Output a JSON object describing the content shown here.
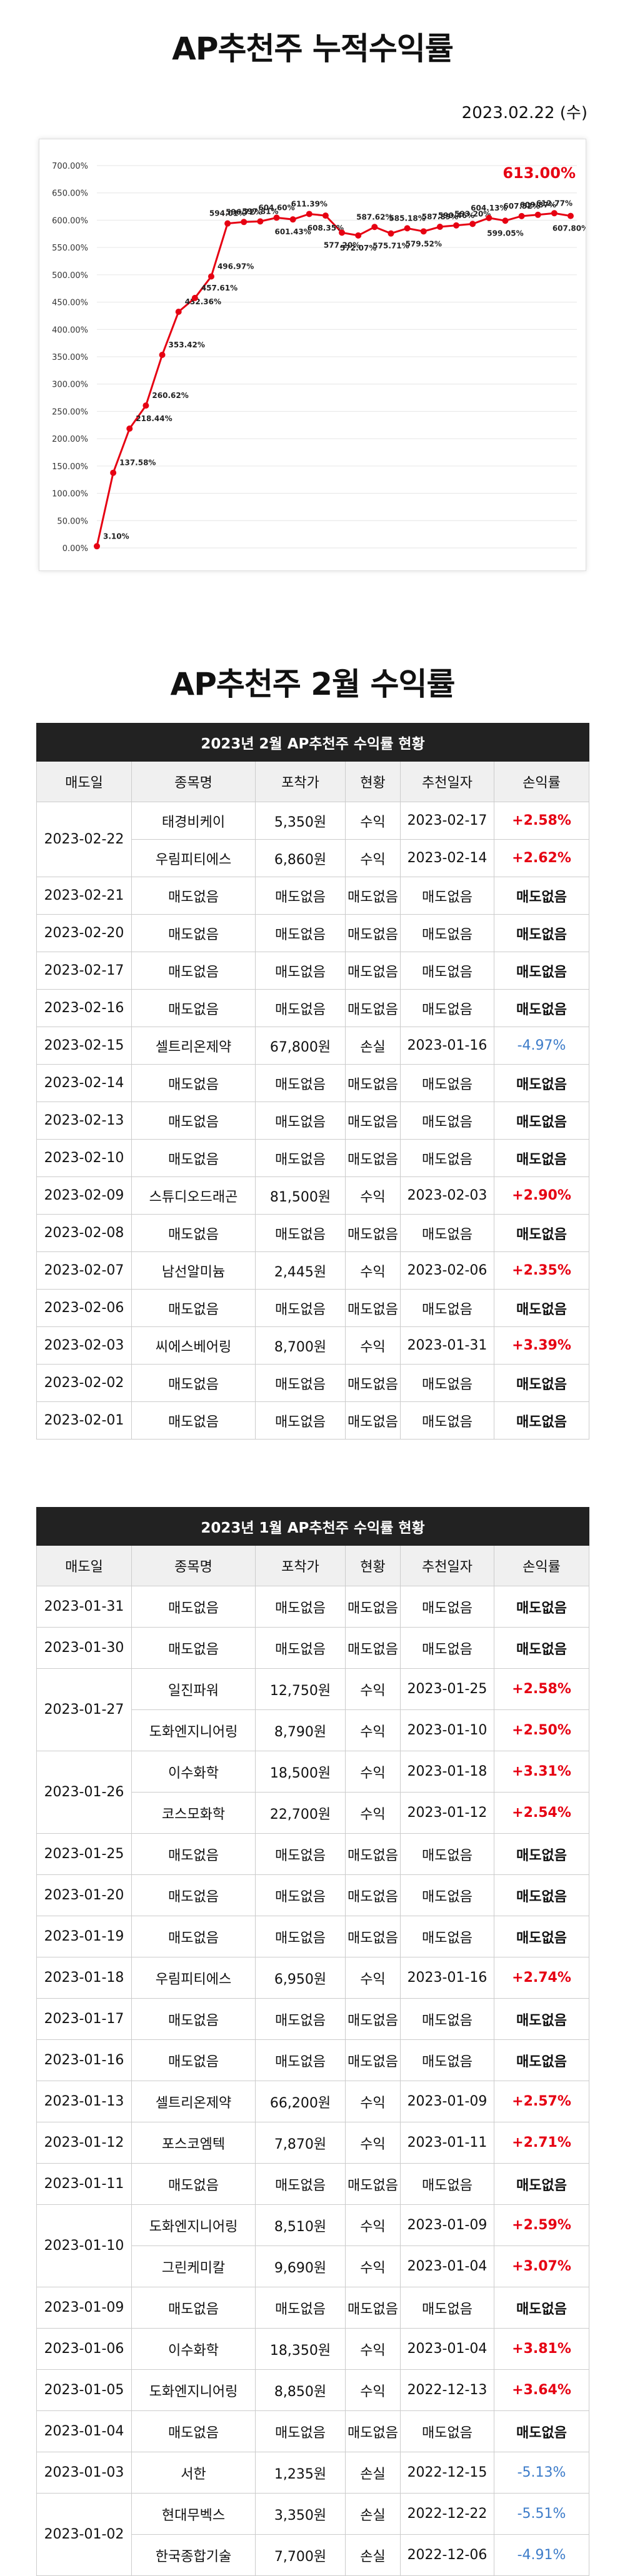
{
  "header": {
    "title": "AP추천주 누적수익률",
    "date": "2023.02.22 (수)"
  },
  "chart_data": {
    "type": "line",
    "categories": [
      null,
      null,
      null,
      null,
      null,
      null,
      null,
      null,
      null,
      null,
      null,
      null,
      null,
      null,
      null,
      null,
      null,
      null,
      null,
      null,
      null,
      null,
      null,
      null,
      null,
      null,
      null,
      null,
      null,
      null
    ],
    "series": [
      {
        "name": null,
        "color": "#e60012",
        "values": [
          3.1,
          137.58,
          218.44,
          260.62,
          353.42,
          432.36,
          457.61,
          496.97,
          594.01,
          596.72,
          597.81,
          604.6,
          601.43,
          611.39,
          608.35,
          577.2,
          572.07,
          587.62,
          575.71,
          585.18,
          579.52,
          587.89,
          590.46,
          593.2,
          604.13,
          599.05,
          607.52,
          609.87,
          612.77,
          607.8
        ],
        "value_labels": [
          "3.10%",
          "137.58%",
          "218.44%",
          "260.62%",
          "353.42%",
          "432.36%",
          "457.61%",
          "496.97%",
          "594.01%",
          "596.72%",
          "597.81%",
          "604.60%",
          "601.43%",
          "611.39%",
          "608.35%",
          "577.20%",
          "572.07%",
          "587.62%",
          "575.71%",
          "585.18%",
          "579.52%",
          "587.89%",
          "590.46%",
          "593.20%",
          "604.13%",
          "599.05%",
          "607.52%",
          "609.87%",
          "612.77%",
          "607.80%"
        ]
      }
    ],
    "annotation": "613.00%",
    "ylim": [
      0,
      700
    ],
    "yticks": [
      {
        "value": 0,
        "label": "0.00%"
      },
      {
        "value": 50,
        "label": "50.00%"
      },
      {
        "value": 100,
        "label": "100.00%"
      },
      {
        "value": 150,
        "label": "150.00%"
      },
      {
        "value": 200,
        "label": "200.00%"
      },
      {
        "value": 250,
        "label": "250.00%"
      },
      {
        "value": 300,
        "label": "300.00%"
      },
      {
        "value": 350,
        "label": "350.00%"
      },
      {
        "value": 400,
        "label": "400.00%"
      },
      {
        "value": 450,
        "label": "450.00%"
      },
      {
        "value": 500,
        "label": "500.00%"
      },
      {
        "value": 550,
        "label": "550.00%"
      },
      {
        "value": 600,
        "label": "600.00%"
      },
      {
        "value": 650,
        "label": "650.00%"
      },
      {
        "value": 700,
        "label": "700.00%"
      }
    ],
    "grid": true
  },
  "section_title": "AP추천주 2월 수익률",
  "tables": [
    {
      "caption": "2023년 2월 AP추천주 수익률 현황",
      "headers": [
        "매도일",
        "종목명",
        "포착가",
        "현황",
        "추천일자",
        "손익률"
      ],
      "groups": [
        {
          "date": "2023-02-22",
          "items": [
            [
              "태경비케이",
              "5,350원",
              "수익",
              "2023-02-17",
              "+2.58%"
            ],
            [
              "우림피티에스",
              "6,860원",
              "수익",
              "2023-02-14",
              "+2.62%"
            ]
          ]
        },
        {
          "date": "2023-02-21",
          "items": [
            [
              "매도없음",
              "매도없음",
              "매도없음",
              "매도없음",
              "매도없음"
            ]
          ]
        },
        {
          "date": "2023-02-20",
          "items": [
            [
              "매도없음",
              "매도없음",
              "매도없음",
              "매도없음",
              "매도없음"
            ]
          ]
        },
        {
          "date": "2023-02-17",
          "items": [
            [
              "매도없음",
              "매도없음",
              "매도없음",
              "매도없음",
              "매도없음"
            ]
          ]
        },
        {
          "date": "2023-02-16",
          "items": [
            [
              "매도없음",
              "매도없음",
              "매도없음",
              "매도없음",
              "매도없음"
            ]
          ]
        },
        {
          "date": "2023-02-15",
          "items": [
            [
              "셀트리온제약",
              "67,800원",
              "손실",
              "2023-01-16",
              "-4.97%"
            ]
          ]
        },
        {
          "date": "2023-02-14",
          "items": [
            [
              "매도없음",
              "매도없음",
              "매도없음",
              "매도없음",
              "매도없음"
            ]
          ]
        },
        {
          "date": "2023-02-13",
          "items": [
            [
              "매도없음",
              "매도없음",
              "매도없음",
              "매도없음",
              "매도없음"
            ]
          ]
        },
        {
          "date": "2023-02-10",
          "items": [
            [
              "매도없음",
              "매도없음",
              "매도없음",
              "매도없음",
              "매도없음"
            ]
          ]
        },
        {
          "date": "2023-02-09",
          "items": [
            [
              "스튜디오드래곤",
              "81,500원",
              "수익",
              "2023-02-03",
              "+2.90%"
            ]
          ]
        },
        {
          "date": "2023-02-08",
          "items": [
            [
              "매도없음",
              "매도없음",
              "매도없음",
              "매도없음",
              "매도없음"
            ]
          ]
        },
        {
          "date": "2023-02-07",
          "items": [
            [
              "남선알미늄",
              "2,445원",
              "수익",
              "2023-02-06",
              "+2.35%"
            ]
          ]
        },
        {
          "date": "2023-02-06",
          "items": [
            [
              "매도없음",
              "매도없음",
              "매도없음",
              "매도없음",
              "매도없음"
            ]
          ]
        },
        {
          "date": "2023-02-03",
          "items": [
            [
              "씨에스베어링",
              "8,700원",
              "수익",
              "2023-01-31",
              "+3.39%"
            ]
          ]
        },
        {
          "date": "2023-02-02",
          "items": [
            [
              "매도없음",
              "매도없음",
              "매도없음",
              "매도없음",
              "매도없음"
            ]
          ]
        },
        {
          "date": "2023-02-01",
          "items": [
            [
              "매도없음",
              "매도없음",
              "매도없음",
              "매도없음",
              "매도없음"
            ]
          ]
        }
      ]
    },
    {
      "caption": "2023년 1월 AP추천주 수익률 현황",
      "headers": [
        "매도일",
        "종목명",
        "포착가",
        "현황",
        "추천일자",
        "손익률"
      ],
      "groups": [
        {
          "date": "2023-01-31",
          "items": [
            [
              "매도없음",
              "매도없음",
              "매도없음",
              "매도없음",
              "매도없음"
            ]
          ]
        },
        {
          "date": "2023-01-30",
          "items": [
            [
              "매도없음",
              "매도없음",
              "매도없음",
              "매도없음",
              "매도없음"
            ]
          ]
        },
        {
          "date": "2023-01-27",
          "items": [
            [
              "일진파워",
              "12,750원",
              "수익",
              "2023-01-25",
              "+2.58%"
            ],
            [
              "도화엔지니어링",
              "8,790원",
              "수익",
              "2023-01-10",
              "+2.50%"
            ]
          ]
        },
        {
          "date": "2023-01-26",
          "items": [
            [
              "이수화학",
              "18,500원",
              "수익",
              "2023-01-18",
              "+3.31%"
            ],
            [
              "코스모화학",
              "22,700원",
              "수익",
              "2023-01-12",
              "+2.54%"
            ]
          ]
        },
        {
          "date": "2023-01-25",
          "items": [
            [
              "매도없음",
              "매도없음",
              "매도없음",
              "매도없음",
              "매도없음"
            ]
          ]
        },
        {
          "date": "2023-01-20",
          "items": [
            [
              "매도없음",
              "매도없음",
              "매도없음",
              "매도없음",
              "매도없음"
            ]
          ]
        },
        {
          "date": "2023-01-19",
          "items": [
            [
              "매도없음",
              "매도없음",
              "매도없음",
              "매도없음",
              "매도없음"
            ]
          ]
        },
        {
          "date": "2023-01-18",
          "items": [
            [
              "우림피티에스",
              "6,950원",
              "수익",
              "2023-01-16",
              "+2.74%"
            ]
          ]
        },
        {
          "date": "2023-01-17",
          "items": [
            [
              "매도없음",
              "매도없음",
              "매도없음",
              "매도없음",
              "매도없음"
            ]
          ]
        },
        {
          "date": "2023-01-16",
          "items": [
            [
              "매도없음",
              "매도없음",
              "매도없음",
              "매도없음",
              "매도없음"
            ]
          ]
        },
        {
          "date": "2023-01-13",
          "items": [
            [
              "셀트리온제약",
              "66,200원",
              "수익",
              "2023-01-09",
              "+2.57%"
            ]
          ]
        },
        {
          "date": "2023-01-12",
          "items": [
            [
              "포스코엠텍",
              "7,870원",
              "수익",
              "2023-01-11",
              "+2.71%"
            ]
          ]
        },
        {
          "date": "2023-01-11",
          "items": [
            [
              "매도없음",
              "매도없음",
              "매도없음",
              "매도없음",
              "매도없음"
            ]
          ]
        },
        {
          "date": "2023-01-10",
          "items": [
            [
              "도화엔지니어링",
              "8,510원",
              "수익",
              "2023-01-09",
              "+2.59%"
            ],
            [
              "그린케미칼",
              "9,690원",
              "수익",
              "2023-01-04",
              "+3.07%"
            ]
          ]
        },
        {
          "date": "2023-01-09",
          "items": [
            [
              "매도없음",
              "매도없음",
              "매도없음",
              "매도없음",
              "매도없음"
            ]
          ]
        },
        {
          "date": "2023-01-06",
          "items": [
            [
              "이수화학",
              "18,350원",
              "수익",
              "2023-01-04",
              "+3.81%"
            ]
          ]
        },
        {
          "date": "2023-01-05",
          "items": [
            [
              "도화엔지니어링",
              "8,850원",
              "수익",
              "2022-12-13",
              "+3.64%"
            ]
          ]
        },
        {
          "date": "2023-01-04",
          "items": [
            [
              "매도없음",
              "매도없음",
              "매도없음",
              "매도없음",
              "매도없음"
            ]
          ]
        },
        {
          "date": "2023-01-03",
          "items": [
            [
              "서한",
              "1,235원",
              "손실",
              "2022-12-15",
              "-5.13%"
            ]
          ]
        },
        {
          "date": "2023-01-02",
          "items": [
            [
              "현대무벡스",
              "3,350원",
              "손실",
              "2022-12-22",
              "-5.51%"
            ],
            [
              "한국종합기술",
              "7,700원",
              "손실",
              "2022-12-06",
              "-4.91%"
            ]
          ]
        }
      ]
    }
  ]
}
